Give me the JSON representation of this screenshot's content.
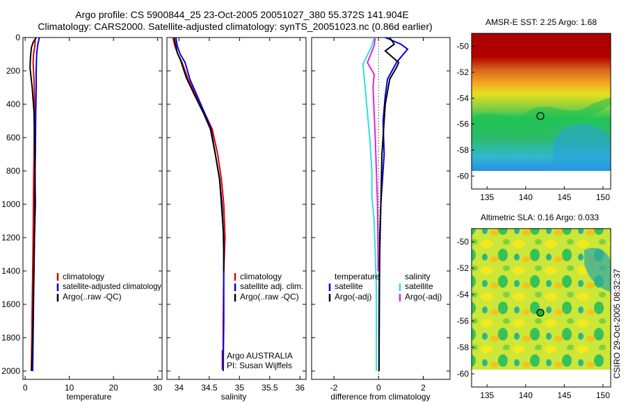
{
  "title_line1": "Argo profile: CS 5900844_25 23-Oct-2005 20051027_380 55.372S 141.904E",
  "title_line2": "Climatology: CARS2000. Satellite-adjusted climatology: synTS_20051023.nc (0.86d earlier)",
  "colors": {
    "climatology": "#e00000",
    "satellite": "#0000e0",
    "argo": "#000000",
    "sal_satellite": "#33dddd",
    "sal_argo": "#dd22dd",
    "pi_text": "#550077"
  },
  "chart_data": [
    {
      "type": "line",
      "id": "temperature",
      "xlabel": "temperature",
      "ylabel": "",
      "xlim": [
        -0.5,
        31
      ],
      "ylim": [
        0,
        2050
      ],
      "y_inverted": true,
      "xticks": [
        0,
        10,
        20,
        30
      ],
      "xtick_labels": [
        "0",
        "10",
        "20",
        "30"
      ],
      "yticks": [
        0,
        200,
        400,
        600,
        800,
        1000,
        1200,
        1400,
        1600,
        1800,
        2000
      ],
      "ytick_labels": [
        "0",
        "200",
        "400",
        "600",
        "800",
        "1000",
        "1200",
        "1400",
        "1600",
        "1800",
        "2000"
      ],
      "legend": [
        "climatology",
        "satellite-adjusted climatology",
        "Argo(..raw -QC)"
      ],
      "series": [
        {
          "name": "climatology",
          "color_key": "climatology",
          "x": [
            2.3,
            2.2,
            1.9,
            1.8,
            2.0,
            2.1,
            2.1,
            2.0,
            1.9,
            1.8,
            1.7,
            1.6,
            1.5,
            1.4
          ],
          "y": [
            0,
            50,
            100,
            150,
            250,
            350,
            450,
            700,
            900,
            1200,
            1400,
            1600,
            1800,
            2000
          ]
        },
        {
          "name": "satellite-adjusted climatology",
          "color_key": "satellite",
          "x": [
            3.2,
            2.8,
            2.6,
            2.5,
            2.5,
            2.4,
            2.3,
            2.2,
            2.1,
            2.0,
            1.9,
            1.8,
            1.7
          ],
          "y": [
            0,
            50,
            100,
            200,
            300,
            450,
            700,
            900,
            1200,
            1400,
            1600,
            1800,
            2000
          ]
        },
        {
          "name": "Argo(..raw -QC)",
          "color_key": "argo",
          "x": [
            2.5,
            1.8,
            1.4,
            1.2,
            1.1,
            1.3,
            1.6,
            2.0,
            2.2,
            2.3,
            2.1,
            1.9,
            1.7,
            1.5,
            1.4
          ],
          "y": [
            0,
            30,
            60,
            120,
            180,
            230,
            300,
            450,
            700,
            1000,
            1200,
            1500,
            1800,
            1950,
            2000
          ]
        }
      ]
    },
    {
      "type": "line",
      "id": "salinity",
      "xlabel": "salinity",
      "ylabel": "",
      "xlim": [
        33.8,
        36.1
      ],
      "ylim": [
        0,
        2050
      ],
      "y_inverted": true,
      "xticks": [
        34,
        34.5,
        35,
        35.5,
        36
      ],
      "xtick_labels": [
        "34",
        "34.5",
        "35",
        "35.5",
        "36"
      ],
      "legend": [
        "climatology",
        "satellite adj. clim.",
        "Argo(..raw -QC)"
      ],
      "annotations": [
        "Argo AUSTRALIA",
        "PI: Susan Wijffels"
      ],
      "series": [
        {
          "name": "climatology",
          "color_key": "climatology",
          "x": [
            33.9,
            33.93,
            33.98,
            34.05,
            34.15,
            34.28,
            34.42,
            34.55,
            34.64,
            34.7,
            34.74,
            34.76,
            34.74,
            34.73,
            34.73
          ],
          "y": [
            0,
            50,
            100,
            150,
            250,
            350,
            450,
            550,
            700,
            850,
            1000,
            1200,
            1400,
            1700,
            2000
          ]
        },
        {
          "name": "satellite adj. clim.",
          "color_key": "satellite",
          "x": [
            33.95,
            33.97,
            34.02,
            34.1,
            34.18,
            34.3,
            34.42,
            34.53,
            34.6,
            34.67,
            34.7,
            34.74,
            34.74,
            34.74,
            34.73
          ],
          "y": [
            0,
            50,
            100,
            150,
            250,
            350,
            450,
            550,
            700,
            850,
            1000,
            1200,
            1400,
            1700,
            2000
          ]
        },
        {
          "name": "Argo(..raw -QC)",
          "color_key": "argo",
          "x": [
            33.92,
            33.94,
            33.97,
            34.03,
            34.12,
            34.25,
            34.4,
            34.52,
            34.6,
            34.67,
            34.71,
            34.73,
            34.74,
            34.74
          ],
          "y": [
            0,
            40,
            90,
            140,
            240,
            340,
            450,
            550,
            700,
            850,
            1000,
            1150,
            1300,
            1400
          ]
        }
      ]
    },
    {
      "type": "line",
      "id": "difference",
      "xlabel": "difference from climatology",
      "ylabel": "",
      "xlim": [
        -3,
        3.2
      ],
      "ylim": [
        0,
        2050
      ],
      "y_inverted": true,
      "xticks": [
        -2,
        0,
        2
      ],
      "xtick_labels": [
        "-2",
        "0",
        "2"
      ],
      "legend_temperature_title": "temperature",
      "legend_salinity_title": "salinity",
      "legend": [
        "satellite",
        "Argo(-adj)",
        "satellite",
        "Argo(-adj)"
      ],
      "series": [
        {
          "name": "temperature satellite",
          "color_key": "satellite",
          "x": [
            0.3,
            1.0,
            1.3,
            0.8,
            0.4,
            0.3,
            0.2,
            0.25,
            0.1,
            0.05,
            0.03,
            0.02
          ],
          "y": [
            0,
            40,
            70,
            150,
            250,
            350,
            500,
            700,
            1000,
            1200,
            1500,
            2000
          ]
        },
        {
          "name": "temperature Argo(-adj)",
          "color_key": "argo",
          "x": [
            0.5,
            0.7,
            0.3,
            0.9,
            0.8,
            0.5,
            0.3,
            0.15,
            0.1,
            0.05,
            0.03,
            0.02
          ],
          "y": [
            0,
            40,
            80,
            150,
            180,
            250,
            400,
            700,
            1000,
            1300,
            1600,
            2000
          ]
        },
        {
          "name": "salinity satellite",
          "color_key": "sal_satellite",
          "x": [
            -0.2,
            -0.3,
            -0.7,
            -0.6,
            -0.5,
            -0.4,
            -0.3,
            -0.3,
            -0.2,
            -0.15,
            -0.1,
            -0.1
          ],
          "y": [
            0,
            50,
            160,
            300,
            450,
            600,
            800,
            950,
            1100,
            1300,
            1500,
            2000
          ]
        },
        {
          "name": "salinity Argo(-adj)",
          "color_key": "sal_argo",
          "x": [
            -0.15,
            -0.2,
            -0.5,
            -0.2,
            -0.25,
            -0.2,
            -0.15,
            -0.1,
            -0.05,
            -0.03,
            -0.02
          ],
          "y": [
            0,
            50,
            150,
            220,
            300,
            450,
            600,
            800,
            1000,
            1200,
            1400
          ]
        }
      ]
    },
    {
      "type": "heatmap",
      "id": "sst",
      "title": "AMSR-E SST: 2.25 Argo: 1.68",
      "xlim": [
        133,
        151
      ],
      "ylim": [
        -61,
        -49
      ],
      "xticks": [
        135,
        140,
        145,
        150
      ],
      "xtick_labels": [
        "135",
        "140",
        "145",
        "150"
      ],
      "yticks": [
        -50,
        -52,
        -54,
        -56,
        -58,
        -60
      ],
      "ytick_labels": [
        "-50",
        "-52",
        "-54",
        "-56",
        "-58",
        "-60"
      ],
      "data_extent_lat": [
        -60,
        -49
      ],
      "profile_marker": {
        "lon": 141.904,
        "lat": -55.372
      }
    },
    {
      "type": "heatmap",
      "id": "sla",
      "title": "Altimetric SLA: 0.16 Argo: 0.033",
      "xlim": [
        133,
        151
      ],
      "ylim": [
        -61,
        -49
      ],
      "xticks": [
        135,
        140,
        145,
        150
      ],
      "xtick_labels": [
        "135",
        "140",
        "145",
        "150"
      ],
      "yticks": [
        -50,
        -52,
        -54,
        -56,
        -58,
        -60
      ],
      "ytick_labels": [
        "-50",
        "-52",
        "-54",
        "-56",
        "-58",
        "-60"
      ],
      "data_extent_lat": [
        -60,
        -49
      ],
      "profile_marker": {
        "lon": 141.904,
        "lat": -55.372
      }
    }
  ],
  "credit": "CSIRO 29-Oct-2005 08:32:37"
}
